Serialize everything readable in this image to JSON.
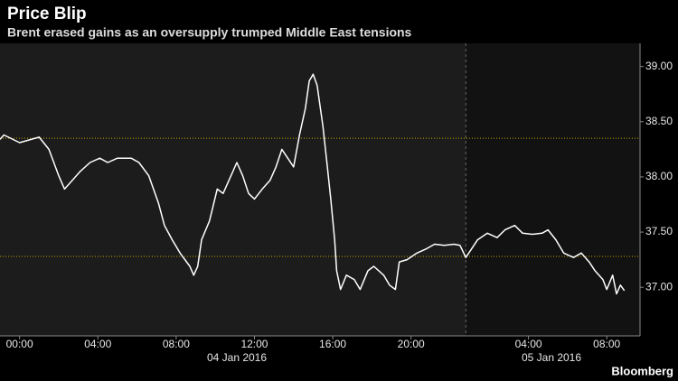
{
  "chart_data": {
    "type": "line",
    "title": "Price Blip",
    "subtitle": "Brent erased gains as an oversupply trumped Middle East tensions",
    "source": "Bloomberg",
    "x": [
      -1.0,
      -0.8,
      0,
      1,
      1.5,
      2.0,
      2.3,
      2.7,
      3.1,
      3.6,
      4.1,
      4.5,
      5.0,
      5.7,
      6.1,
      6.6,
      7.1,
      7.4,
      7.8,
      8.2,
      8.7,
      8.9,
      9.1,
      9.3,
      9.7,
      10.1,
      10.4,
      10.8,
      11.1,
      11.4,
      11.7,
      12.0,
      12.4,
      12.8,
      13.1,
      13.4,
      13.7,
      14.0,
      14.3,
      14.6,
      14.8,
      15.0,
      15.2,
      15.5,
      15.7,
      15.9,
      16.1,
      16.2,
      16.4,
      16.7,
      17.1,
      17.4,
      17.8,
      18.1,
      18.6,
      18.9,
      19.2,
      19.4,
      19.8,
      20.3,
      20.8,
      21.2,
      21.7,
      22.2,
      22.5,
      22.8,
      23.1,
      23.4,
      23.9,
      24.4,
      24.8,
      25.3,
      25.7,
      26.2,
      26.7,
      27.0,
      27.4,
      27.8,
      28.3,
      28.7,
      29.1,
      29.4,
      29.8,
      30.0,
      30.3,
      30.5,
      30.7,
      30.9
    ],
    "series": [
      {
        "name": "Brent",
        "color": "#ffffff",
        "values": [
          38.34,
          38.38,
          38.31,
          38.36,
          38.25,
          38.01,
          37.89,
          37.97,
          38.05,
          38.13,
          38.17,
          38.13,
          38.17,
          38.17,
          38.13,
          38.01,
          37.76,
          37.56,
          37.43,
          37.31,
          37.19,
          37.11,
          37.19,
          37.43,
          37.6,
          37.89,
          37.85,
          38.01,
          38.13,
          38.01,
          37.85,
          37.8,
          37.89,
          37.97,
          38.09,
          38.25,
          38.17,
          38.09,
          38.38,
          38.62,
          38.87,
          38.93,
          38.83,
          38.46,
          38.13,
          37.8,
          37.43,
          37.15,
          36.98,
          37.11,
          37.07,
          36.98,
          37.15,
          37.19,
          37.11,
          37.02,
          36.98,
          37.23,
          37.25,
          37.31,
          37.35,
          37.39,
          37.38,
          37.39,
          37.38,
          37.27,
          37.35,
          37.43,
          37.49,
          37.45,
          37.52,
          37.56,
          37.49,
          37.48,
          37.49,
          37.52,
          37.43,
          37.31,
          37.27,
          37.31,
          37.23,
          37.15,
          37.07,
          36.98,
          37.11,
          36.94,
          37.02,
          36.97
        ]
      }
    ],
    "reference_lines": [
      38.35,
      37.28
    ],
    "reference_color": "#c9a000",
    "session_break": 22.8,
    "xlim": [
      -1.0,
      31.7
    ],
    "ylim": [
      36.56,
      39.21
    ],
    "xticks": [
      {
        "value": 0,
        "label": "00:00"
      },
      {
        "value": 4,
        "label": "04:00"
      },
      {
        "value": 8,
        "label": "08:00"
      },
      {
        "value": 12,
        "label": "12:00"
      },
      {
        "value": 16,
        "label": "16:00"
      },
      {
        "value": 20,
        "label": "20:00"
      },
      {
        "value": 26,
        "label": "04:00"
      },
      {
        "value": 30,
        "label": "08:00"
      }
    ],
    "yticks": [
      {
        "value": 37,
        "label": "37.00"
      },
      {
        "value": 37.5,
        "label": "37.50"
      },
      {
        "value": 38,
        "label": "38.00"
      },
      {
        "value": 38.5,
        "label": "38.50"
      },
      {
        "value": 39,
        "label": "39.00"
      }
    ],
    "date_labels": [
      "04 Jan 2016",
      "05 Jan 2016"
    ]
  }
}
